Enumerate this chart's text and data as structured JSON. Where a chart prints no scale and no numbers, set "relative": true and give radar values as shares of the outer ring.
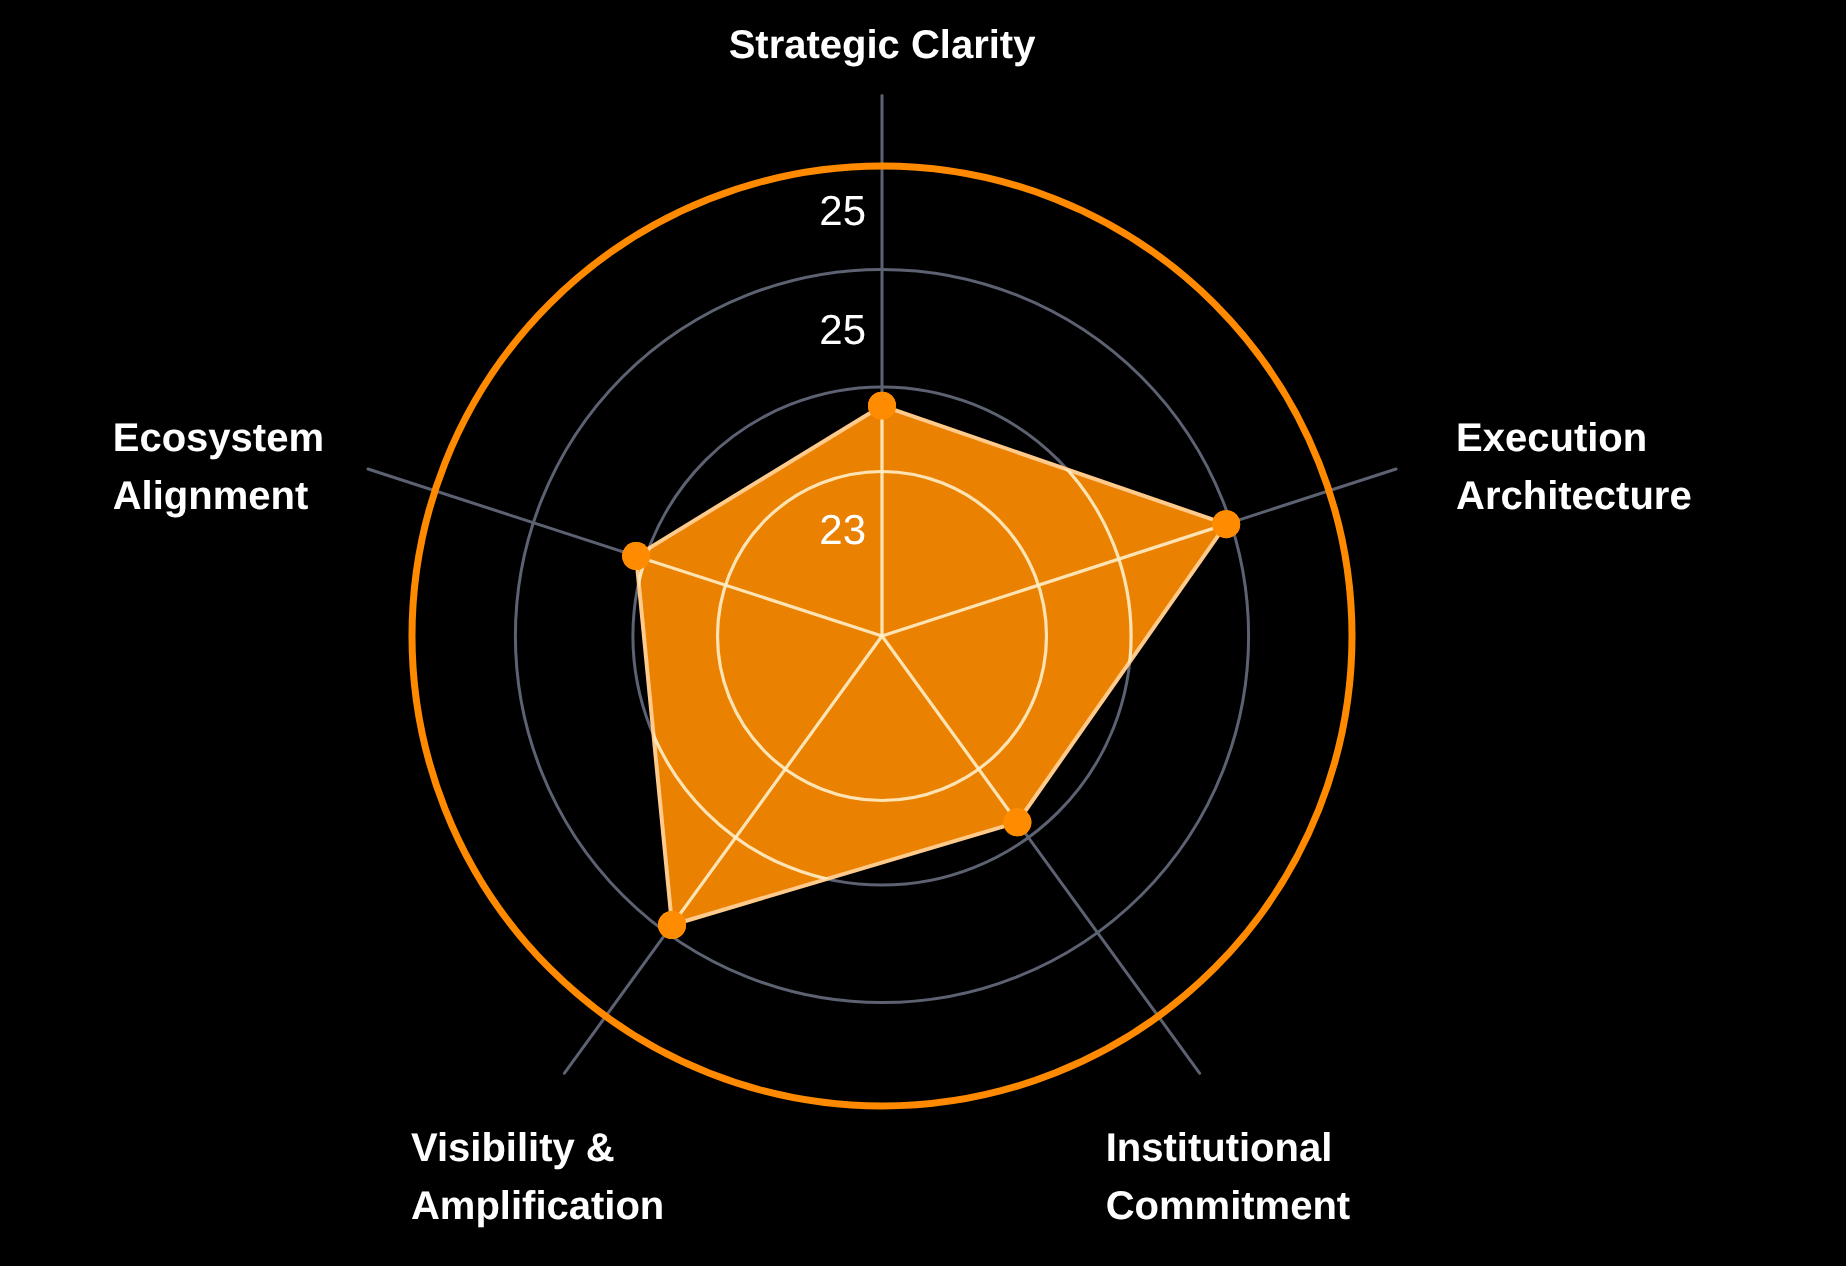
{
  "chart_data": {
    "type": "radar",
    "categories": [
      "Strategic Clarity",
      "Execution Architecture",
      "Institutional Commitment",
      "Visibility & Amplification",
      "Ecosystem Alignment"
    ],
    "relative": true,
    "series": [
      {
        "color": "#ff8c00",
        "values": [
          0.49,
          0.77,
          0.49,
          0.76,
          0.55
        ]
      }
    ],
    "grid": true,
    "marker": "circle",
    "annotations": [
      "23",
      "25",
      "25"
    ]
  }
}
